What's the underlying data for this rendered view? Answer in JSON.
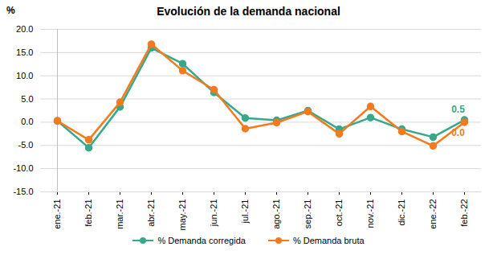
{
  "chart_data": {
    "type": "line",
    "title": "Evolución de la demanda nacional",
    "y_label": "%",
    "categories": [
      "ene.-21",
      "feb.-21",
      "mar.-21",
      "abr.-21",
      "may.-21",
      "jun.-21",
      "jul.-21",
      "ago.-21",
      "sep.-21",
      "oct.-21",
      "nov.-21",
      "dic.-21",
      "ene.-22",
      "feb.-22"
    ],
    "series": [
      {
        "name": "% Demanda corregida",
        "color": "#35a98a",
        "marker": "circle",
        "values": [
          0.3,
          -5.5,
          3.3,
          16.0,
          12.6,
          6.4,
          0.9,
          0.4,
          2.5,
          -1.5,
          1.0,
          -1.5,
          -3.2,
          0.5
        ],
        "value_labels": [
          null,
          null,
          null,
          null,
          null,
          null,
          null,
          null,
          null,
          null,
          null,
          null,
          null,
          "0.5"
        ]
      },
      {
        "name": "% Demanda bruta",
        "color": "#f47a1f",
        "marker": "circle",
        "values": [
          0.3,
          -3.8,
          4.3,
          16.8,
          11.1,
          7.0,
          -1.4,
          -0.1,
          2.3,
          -2.5,
          3.4,
          -2.0,
          -5.1,
          0.0
        ],
        "value_labels": [
          null,
          null,
          null,
          null,
          null,
          null,
          null,
          null,
          null,
          null,
          null,
          null,
          null,
          "0.0"
        ]
      }
    ],
    "ylim": [
      -15,
      20
    ],
    "yticks": [
      {
        "value": -15,
        "label": "-15.0"
      },
      {
        "value": -10,
        "label": "-10.0"
      },
      {
        "value": -5,
        "label": "-5.0"
      },
      {
        "value": 0,
        "label": "0.0"
      },
      {
        "value": 5,
        "label": "5.0"
      },
      {
        "value": 10,
        "label": "10.0"
      },
      {
        "value": 15,
        "label": "15.0"
      },
      {
        "value": 20,
        "label": "20.0"
      }
    ],
    "grid": true,
    "legend": "bottom"
  }
}
